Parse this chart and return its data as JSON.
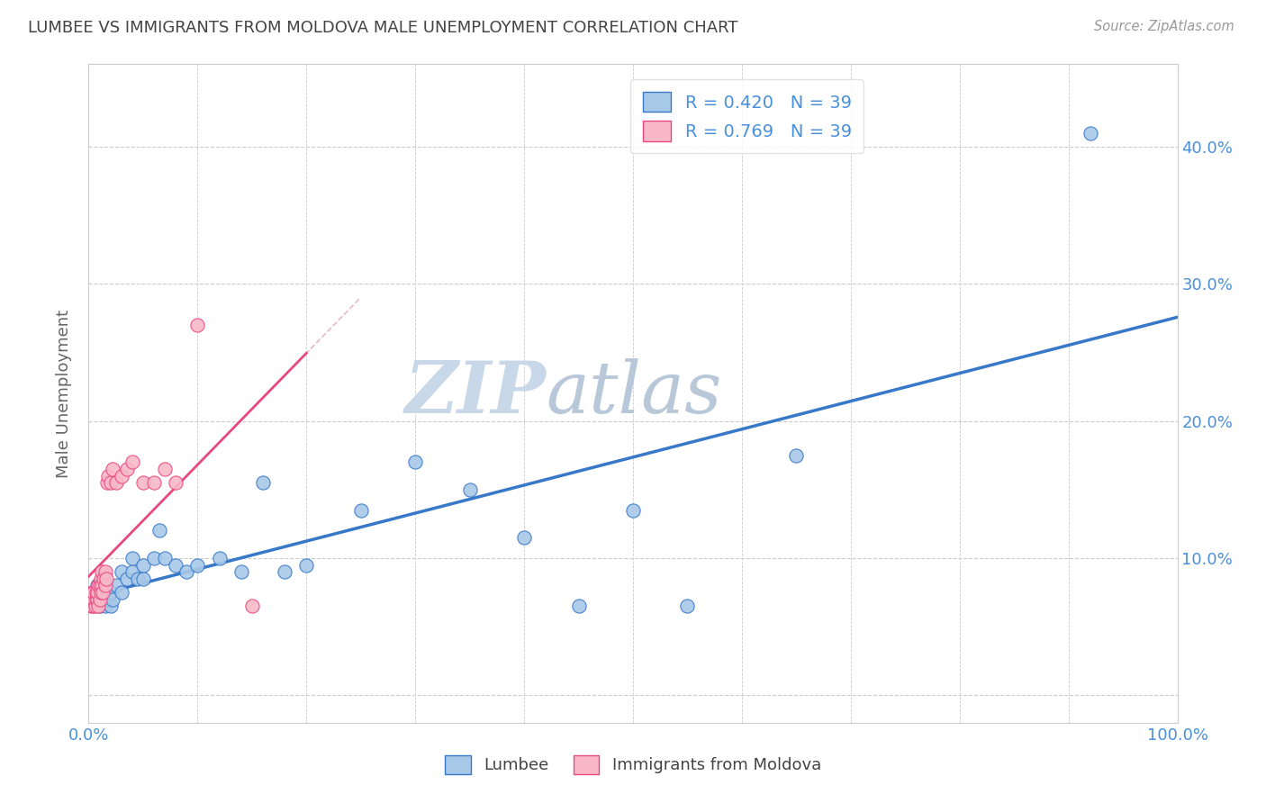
{
  "title": "LUMBEE VS IMMIGRANTS FROM MOLDOVA MALE UNEMPLOYMENT CORRELATION CHART",
  "source": "Source: ZipAtlas.com",
  "ylabel": "Male Unemployment",
  "xlim": [
    0,
    1.0
  ],
  "ylim": [
    -0.02,
    0.46
  ],
  "yticks": [
    0.0,
    0.1,
    0.2,
    0.3,
    0.4
  ],
  "ytick_labels_right": [
    "",
    "10.0%",
    "20.0%",
    "30.0%",
    "40.0%"
  ],
  "xtick_labels": [
    "0.0%",
    "100.0%"
  ],
  "lumbee_R": 0.42,
  "lumbee_N": 39,
  "moldova_R": 0.769,
  "moldova_N": 39,
  "lumbee_color": "#a8c8e8",
  "moldova_color": "#f8b8c8",
  "lumbee_line_color": "#3878c8",
  "moldova_line_color": "#e84880",
  "moldova_dash_color": "#e8b8c8",
  "watermark_zip": "ZIP",
  "watermark_atlas": "atlas",
  "watermark_color": "#c8d8e8",
  "lumbee_x": [
    0.005,
    0.008,
    0.01,
    0.012,
    0.015,
    0.015,
    0.018,
    0.02,
    0.02,
    0.022,
    0.025,
    0.03,
    0.03,
    0.035,
    0.04,
    0.04,
    0.045,
    0.05,
    0.05,
    0.06,
    0.065,
    0.07,
    0.08,
    0.09,
    0.1,
    0.12,
    0.14,
    0.16,
    0.18,
    0.2,
    0.25,
    0.3,
    0.35,
    0.4,
    0.45,
    0.5,
    0.55,
    0.65,
    0.92
  ],
  "lumbee_y": [
    0.07,
    0.08,
    0.065,
    0.075,
    0.07,
    0.065,
    0.07,
    0.065,
    0.075,
    0.07,
    0.08,
    0.09,
    0.075,
    0.085,
    0.09,
    0.1,
    0.085,
    0.095,
    0.085,
    0.1,
    0.12,
    0.1,
    0.095,
    0.09,
    0.095,
    0.1,
    0.09,
    0.155,
    0.09,
    0.095,
    0.135,
    0.17,
    0.15,
    0.115,
    0.065,
    0.135,
    0.065,
    0.175,
    0.41
  ],
  "moldova_x": [
    0.002,
    0.003,
    0.003,
    0.004,
    0.004,
    0.005,
    0.005,
    0.006,
    0.007,
    0.007,
    0.008,
    0.008,
    0.009,
    0.009,
    0.01,
    0.01,
    0.011,
    0.011,
    0.012,
    0.012,
    0.013,
    0.014,
    0.015,
    0.015,
    0.016,
    0.017,
    0.018,
    0.02,
    0.022,
    0.025,
    0.03,
    0.035,
    0.04,
    0.05,
    0.06,
    0.07,
    0.08,
    0.1,
    0.15
  ],
  "moldova_y": [
    0.065,
    0.07,
    0.075,
    0.065,
    0.075,
    0.07,
    0.075,
    0.065,
    0.07,
    0.075,
    0.07,
    0.075,
    0.065,
    0.08,
    0.07,
    0.08,
    0.075,
    0.085,
    0.08,
    0.09,
    0.075,
    0.085,
    0.08,
    0.09,
    0.085,
    0.155,
    0.16,
    0.155,
    0.165,
    0.155,
    0.16,
    0.165,
    0.17,
    0.155,
    0.155,
    0.165,
    0.155,
    0.27,
    0.065
  ],
  "lumbee_line_x0": 0.0,
  "lumbee_line_x1": 1.0,
  "moldova_line_x0": 0.0,
  "moldova_line_x1": 0.2
}
